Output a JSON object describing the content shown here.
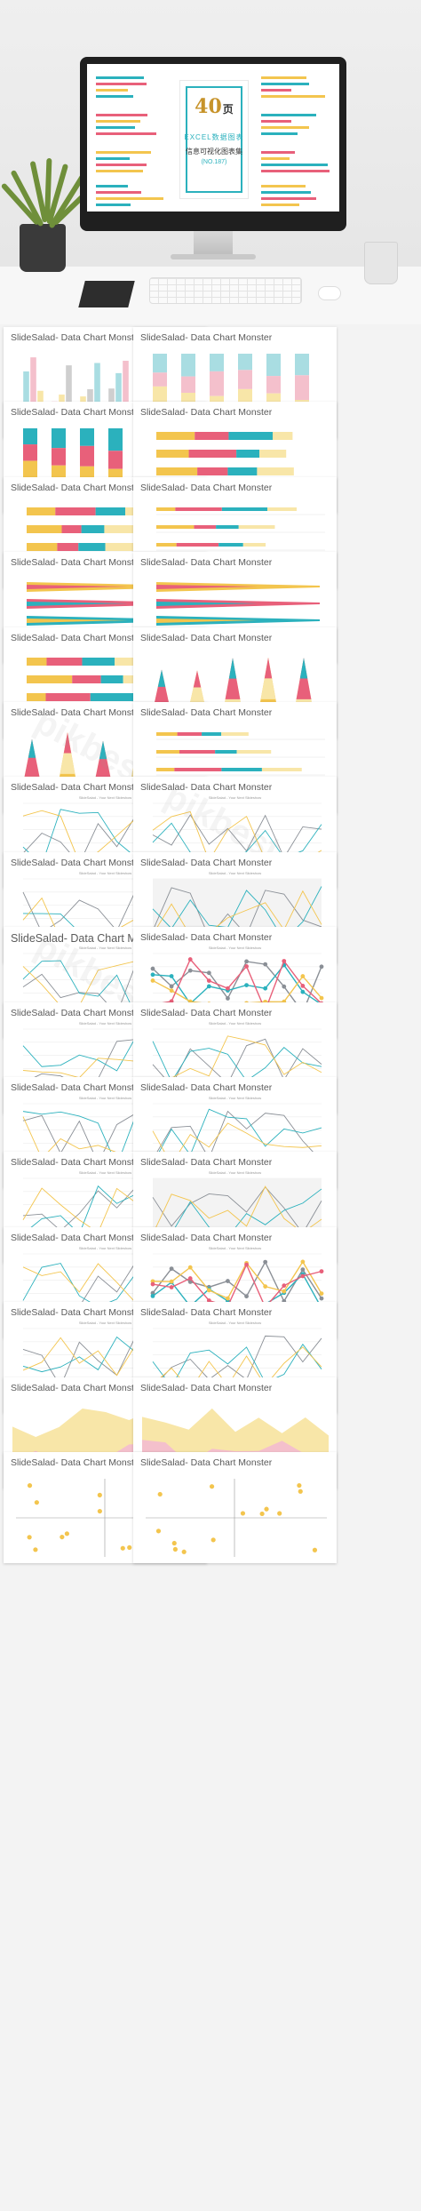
{
  "hero": {
    "number": "40",
    "number_suffix": "页",
    "line1": "EXCEL数据图表",
    "line2": "信息可视化图表集",
    "line3": "(NO.187)"
  },
  "slide_title": "SlideSalad- Data Chart Monster",
  "slide_subtitle": "SlideSalad - Your Next Slideshow",
  "watermark": "pikbest",
  "colors": {
    "teal": "#2bb1bd",
    "pink": "#e8607a",
    "yellow": "#f3c54e",
    "light_yellow": "#f8e6a8",
    "light_pink": "#f4c0cc",
    "light_blue": "#a9dde2",
    "gray_line": "#8a8f96",
    "dark": "#333333"
  },
  "slides": [
    {
      "type": "bar-3d"
    },
    {
      "type": "stacked-column-light"
    },
    {
      "type": "stacked-column"
    },
    {
      "type": "stacked-bar-h"
    },
    {
      "type": "stacked-bar-h"
    },
    {
      "type": "stacked-bar-thin"
    },
    {
      "type": "taper-bar"
    },
    {
      "type": "taper-bar"
    },
    {
      "type": "stacked-bar-h"
    },
    {
      "type": "cone"
    },
    {
      "type": "cone"
    },
    {
      "type": "stacked-bar-thin"
    },
    {
      "type": "line"
    },
    {
      "type": "line"
    },
    {
      "type": "line"
    },
    {
      "type": "line-area"
    },
    {
      "type": "line"
    },
    {
      "type": "line-dots"
    },
    {
      "type": "line"
    },
    {
      "type": "line"
    },
    {
      "type": "line"
    },
    {
      "type": "line"
    },
    {
      "type": "line"
    },
    {
      "type": "line-area"
    },
    {
      "type": "line"
    },
    {
      "type": "line-dots"
    },
    {
      "type": "line"
    },
    {
      "type": "line"
    },
    {
      "type": "area"
    },
    {
      "type": "area"
    },
    {
      "type": "scatter"
    },
    {
      "type": "scatter"
    }
  ]
}
